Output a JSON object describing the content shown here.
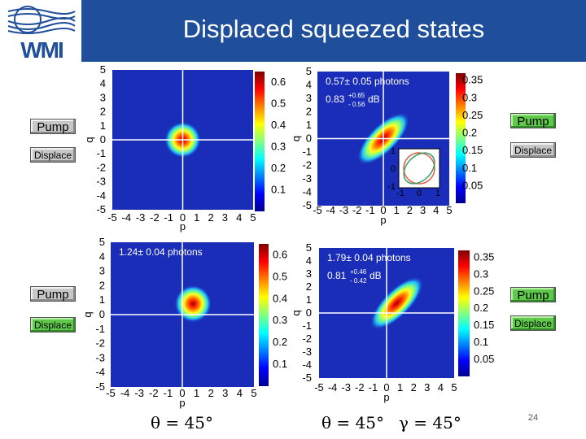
{
  "header": {
    "title": "Displaced squeezed states",
    "logo_text": "WMI"
  },
  "controls": {
    "top_left": {
      "pump_label": "Pump",
      "displace_label": "Displace",
      "pump_active": false,
      "displace_active": false
    },
    "top_right": {
      "pump_label": "Pump",
      "displace_label": "Displace",
      "pump_active": true,
      "displace_active": false
    },
    "bottom_left": {
      "pump_label": "Pump",
      "displace_label": "Displace",
      "pump_active": false,
      "displace_active": true
    },
    "bottom_right": {
      "pump_label": "Pump",
      "displace_label": "Displace",
      "pump_active": true,
      "displace_active": true
    }
  },
  "formulas": {
    "theta_left": "θ = 45°",
    "theta_right": "θ = 45°",
    "gamma_right": "γ = 45°"
  },
  "page_number": "24",
  "colors": {
    "title_bar": "#1f4e9a",
    "plot_bg": "#1a2db8",
    "crosshair": "#ffffff"
  },
  "chart_data": [
    {
      "type": "heatmap",
      "id": "vacuum",
      "x_axis_label": "p",
      "y_axis_label": "q",
      "x_ticks": [
        "-5",
        "-4",
        "-3",
        "-2",
        "-1",
        "0",
        "1",
        "2",
        "3",
        "4",
        "5"
      ],
      "y_ticks": [
        "5",
        "4",
        "3",
        "2",
        "1",
        "0",
        "-1",
        "-2",
        "-3",
        "-4",
        "-5"
      ],
      "xlim": [
        -5,
        5
      ],
      "ylim": [
        -5,
        5
      ],
      "colorbar_ticks": [
        "0.6",
        "0.5",
        "0.4",
        "0.3",
        "0.2",
        "0.1"
      ],
      "colorbar_range": [
        0,
        0.65
      ],
      "blob": {
        "center_p": 0,
        "center_q": 0,
        "sigma_major": 0.5,
        "sigma_minor": 0.5,
        "angle_deg": 0
      },
      "annotations": []
    },
    {
      "type": "heatmap",
      "id": "squeezed",
      "x_axis_label": "p",
      "y_axis_label": "q",
      "x_ticks": [
        "-5",
        "-4",
        "-3",
        "-2",
        "-1",
        "0",
        "1",
        "2",
        "3",
        "4",
        "5"
      ],
      "y_ticks": [
        "5",
        "4",
        "3",
        "2",
        "1",
        "0",
        "-1",
        "-2",
        "-3",
        "-4",
        "-5"
      ],
      "xlim": [
        -5,
        5
      ],
      "ylim": [
        -5,
        5
      ],
      "colorbar_ticks": [
        "0.35",
        "0.3",
        "0.25",
        "0.2",
        "0.15",
        "0.1",
        "0.05"
      ],
      "colorbar_range": [
        0,
        0.37
      ],
      "blob": {
        "center_p": 0,
        "center_q": 0,
        "sigma_major": 1.0,
        "sigma_minor": 0.4,
        "angle_deg": 45
      },
      "annotations": [
        {
          "text": "0.57± 0.05 photons"
        },
        {
          "text": "0.83",
          "sup": "+0.65",
          "sub": "- 0.56",
          "unit": "dB"
        }
      ],
      "inset": {
        "x_ticks": [
          "-1",
          "0",
          "1"
        ],
        "y_ticks": [
          "1",
          "0",
          "-1"
        ]
      }
    },
    {
      "type": "heatmap",
      "id": "coherent",
      "x_axis_label": "p",
      "y_axis_label": "q",
      "x_ticks": [
        "-5",
        "-4",
        "-3",
        "-2",
        "-1",
        "0",
        "1",
        "2",
        "3",
        "4",
        "5"
      ],
      "y_ticks": [
        "5",
        "4",
        "3",
        "2",
        "1",
        "0",
        "-1",
        "-2",
        "-3",
        "-4",
        "-5"
      ],
      "xlim": [
        -5,
        5
      ],
      "ylim": [
        -5,
        5
      ],
      "colorbar_ticks": [
        "0.6",
        "0.5",
        "0.4",
        "0.3",
        "0.2",
        "0.1"
      ],
      "colorbar_range": [
        0,
        0.65
      ],
      "blob": {
        "center_p": 0.75,
        "center_q": 0.75,
        "sigma_major": 0.5,
        "sigma_minor": 0.5,
        "angle_deg": 0
      },
      "annotations": [
        {
          "text": "1.24± 0.04 photons"
        }
      ]
    },
    {
      "type": "heatmap",
      "id": "displaced-squeezed",
      "x_axis_label": "p",
      "y_axis_label": "q",
      "x_ticks": [
        "-5",
        "-4",
        "-3",
        "-2",
        "-1",
        "0",
        "1",
        "2",
        "3",
        "4",
        "5"
      ],
      "y_ticks": [
        "5",
        "4",
        "3",
        "2",
        "1",
        "0",
        "-1",
        "-2",
        "-3",
        "-4",
        "-5"
      ],
      "xlim": [
        -5,
        5
      ],
      "ylim": [
        -5,
        5
      ],
      "colorbar_ticks": [
        "0.35",
        "0.3",
        "0.25",
        "0.2",
        "0.15",
        "0.1",
        "0.05"
      ],
      "colorbar_range": [
        0,
        0.37
      ],
      "blob": {
        "center_p": 0.75,
        "center_q": 0.75,
        "sigma_major": 1.0,
        "sigma_minor": 0.4,
        "angle_deg": 45
      },
      "annotations": [
        {
          "text": "1.79± 0.04 photons"
        },
        {
          "text": "0.81",
          "sup": "+0.46",
          "sub": "- 0.42",
          "unit": "dB"
        }
      ]
    }
  ]
}
